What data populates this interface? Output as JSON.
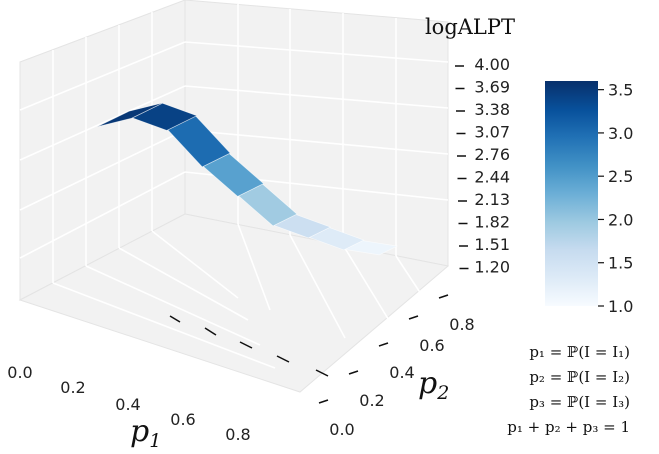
{
  "chart_data": {
    "type": "surface3d",
    "z_label": "logALPT",
    "x_label": {
      "main": "p",
      "sub": "1"
    },
    "y_label": {
      "main": "p",
      "sub": "2"
    },
    "x_ticks": [
      "0.0",
      "0.2",
      "0.4",
      "0.6",
      "0.8"
    ],
    "y_ticks": [
      "0.0",
      "0.2",
      "0.4",
      "0.6",
      "0.8"
    ],
    "z_ticks": [
      "1.20",
      "1.51",
      "1.82",
      "2.13",
      "2.44",
      "2.76",
      "3.07",
      "3.38",
      "3.69",
      "4.00"
    ],
    "zlim": [
      1.2,
      4.0
    ],
    "colorbar": {
      "colormap": "Blues",
      "range": [
        1.0,
        3.6
      ],
      "ticks": [
        "1.0",
        "1.5",
        "2.0",
        "2.5",
        "3.0",
        "3.5"
      ],
      "stops": [
        "#f7fbff",
        "#deebf7",
        "#c6dbef",
        "#9ecae1",
        "#6baed6",
        "#4292c6",
        "#2171b5",
        "#08519c",
        "#08306b"
      ]
    },
    "p1_values": [
      0.0,
      0.1,
      0.2,
      0.3,
      0.4,
      0.5,
      0.6,
      0.7,
      0.8
    ],
    "surface": [
      {
        "p1": 0.0,
        "p2": 0.0,
        "z": 3.5
      },
      {
        "p1": 0.1,
        "p2": 0.0,
        "z": 3.55
      },
      {
        "p1": 0.2,
        "p2": 0.0,
        "z": 3.3
      },
      {
        "p1": 0.3,
        "p2": 0.0,
        "z": 2.7
      },
      {
        "p1": 0.4,
        "p2": 0.0,
        "z": 2.2
      },
      {
        "p1": 0.5,
        "p2": 0.0,
        "z": 1.7
      },
      {
        "p1": 0.6,
        "p2": 0.0,
        "z": 1.45
      },
      {
        "p1": 0.7,
        "p2": 0.0,
        "z": 1.2
      },
      {
        "p1": 0.8,
        "p2": 0.0,
        "z": 1.05
      }
    ],
    "annotations": [
      "p₁ = ℙ(I = I₁)",
      "p₂ = ℙ(I = I₂)",
      "p₃ = ℙ(I = I₃)",
      "p₁ + p₂ + p₃ = 1"
    ]
  }
}
